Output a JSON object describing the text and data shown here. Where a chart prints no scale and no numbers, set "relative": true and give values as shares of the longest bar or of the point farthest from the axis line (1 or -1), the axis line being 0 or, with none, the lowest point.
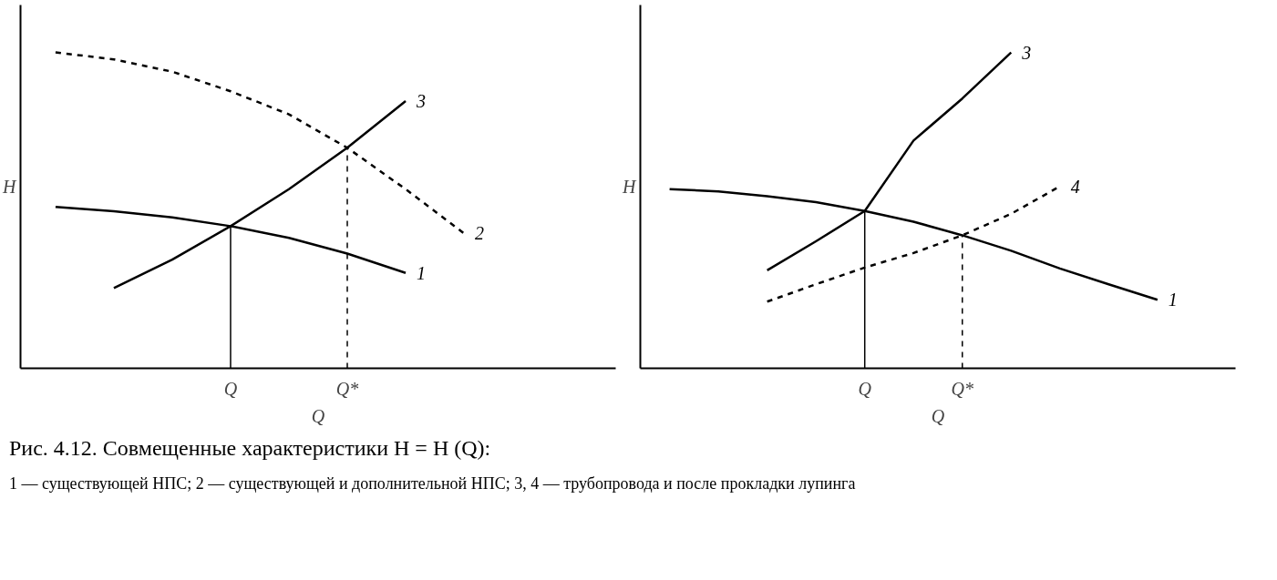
{
  "chart_data": [
    {
      "type": "line",
      "relative": true,
      "xlabel": "Q",
      "ylabel": "H",
      "tick_labels": "x",
      "grid": false,
      "categories": [
        null,
        null,
        null,
        "Q",
        null,
        "Q*",
        null,
        null,
        null
      ],
      "series": [
        {
          "name": "1",
          "color": "#000000",
          "line_style": "solid",
          "values": [
            0.511,
            0.497,
            0.478,
            0.45,
            0.413,
            0.363,
            0.302,
            null,
            null
          ]
        },
        {
          "name": "2",
          "color": "#000000",
          "line_style": "dashed",
          "values": [
            1.0,
            0.978,
            0.939,
            0.877,
            0.804,
            0.698,
            0.567,
            0.427,
            null
          ]
        },
        {
          "name": "3",
          "color": "#000000",
          "line_style": "solid",
          "values": [
            null,
            0.254,
            0.344,
            0.45,
            0.567,
            0.698,
            0.846,
            null,
            null
          ]
        }
      ],
      "ref_lines": [
        {
          "axis": "x",
          "value": "Q",
          "line_style": "solid",
          "color": "#000000"
        },
        {
          "axis": "x",
          "value": "Q*",
          "line_style": "dashed",
          "color": "#000000"
        }
      ]
    },
    {
      "type": "line",
      "relative": true,
      "xlabel": "Q",
      "ylabel": "H",
      "tick_labels": "x",
      "grid": false,
      "categories": [
        null,
        null,
        null,
        null,
        "Q",
        null,
        "Q*",
        null,
        null,
        null,
        null
      ],
      "series": [
        {
          "name": "3",
          "color": "#000000",
          "line_style": "solid",
          "values": [
            null,
            null,
            0.31,
            0.402,
            0.498,
            0.721,
            0.854,
            1.0,
            null,
            null,
            null
          ]
        },
        {
          "name": "4",
          "color": "#000000",
          "line_style": "dashed",
          "values": [
            null,
            null,
            0.211,
            0.266,
            0.319,
            0.365,
            0.421,
            0.489,
            0.576,
            null,
            null
          ]
        },
        {
          "name": "1",
          "color": "#000000",
          "line_style": "solid",
          "values": [
            0.567,
            0.56,
            0.545,
            0.526,
            0.498,
            0.464,
            0.421,
            0.372,
            0.316,
            0.266,
            0.217
          ]
        }
      ],
      "ref_lines": [
        {
          "axis": "x",
          "value": "Q",
          "line_style": "solid",
          "color": "#000000"
        },
        {
          "axis": "x",
          "value": "Q*",
          "line_style": "dashed",
          "color": "#000000"
        }
      ],
      "annotations": [
        "Рис. 4.12. Совмещенные характеристики H = H (Q):",
        "1 — существующей НПС; 2 — существующей и дополнительной НПС; 3, 4 — трубопровода и после прокладки лупинга"
      ]
    }
  ]
}
